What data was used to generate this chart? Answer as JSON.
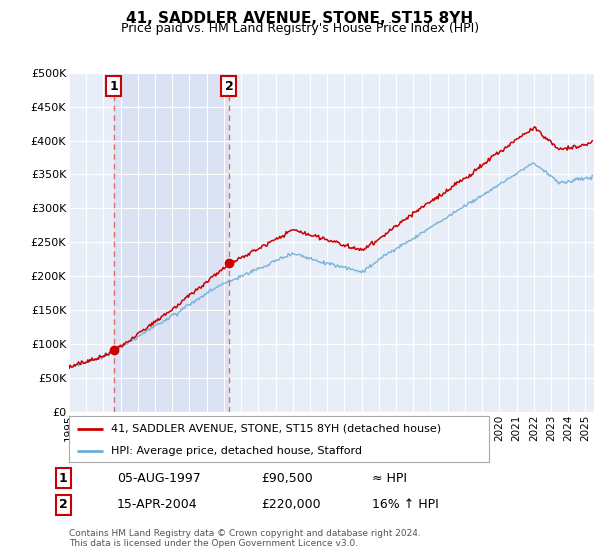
{
  "title": "41, SADDLER AVENUE, STONE, ST15 8YH",
  "subtitle": "Price paid vs. HM Land Registry's House Price Index (HPI)",
  "ylim": [
    0,
    500000
  ],
  "yticks": [
    0,
    50000,
    100000,
    150000,
    200000,
    250000,
    300000,
    350000,
    400000,
    450000,
    500000
  ],
  "ytick_labels": [
    "£0",
    "£50K",
    "£100K",
    "£150K",
    "£200K",
    "£250K",
    "£300K",
    "£350K",
    "£400K",
    "£450K",
    "£500K"
  ],
  "x_start": 1995.0,
  "x_end": 2025.5,
  "xticks": [
    1995,
    1996,
    1997,
    1998,
    1999,
    2000,
    2001,
    2002,
    2003,
    2004,
    2005,
    2006,
    2007,
    2008,
    2009,
    2010,
    2011,
    2012,
    2013,
    2014,
    2015,
    2016,
    2017,
    2018,
    2019,
    2020,
    2021,
    2022,
    2023,
    2024,
    2025
  ],
  "hpi_color": "#6baed6",
  "price_color": "#cc0000",
  "dashed_color": "#e06060",
  "background_color": "#e8eef8",
  "grid_color": "#ffffff",
  "legend_label_price": "41, SADDLER AVENUE, STONE, ST15 8YH (detached house)",
  "legend_label_hpi": "HPI: Average price, detached house, Stafford",
  "sale1_date": 1997.59,
  "sale1_price": 90500,
  "sale2_date": 2004.29,
  "sale2_price": 220000,
  "footer1": "Contains HM Land Registry data © Crown copyright and database right 2024.",
  "footer2": "This data is licensed under the Open Government Licence v3.0.",
  "table_row1": [
    "1",
    "05-AUG-1997",
    "£90,500",
    "≈ HPI"
  ],
  "table_row2": [
    "2",
    "15-APR-2004",
    "£220,000",
    "16% ↑ HPI"
  ]
}
